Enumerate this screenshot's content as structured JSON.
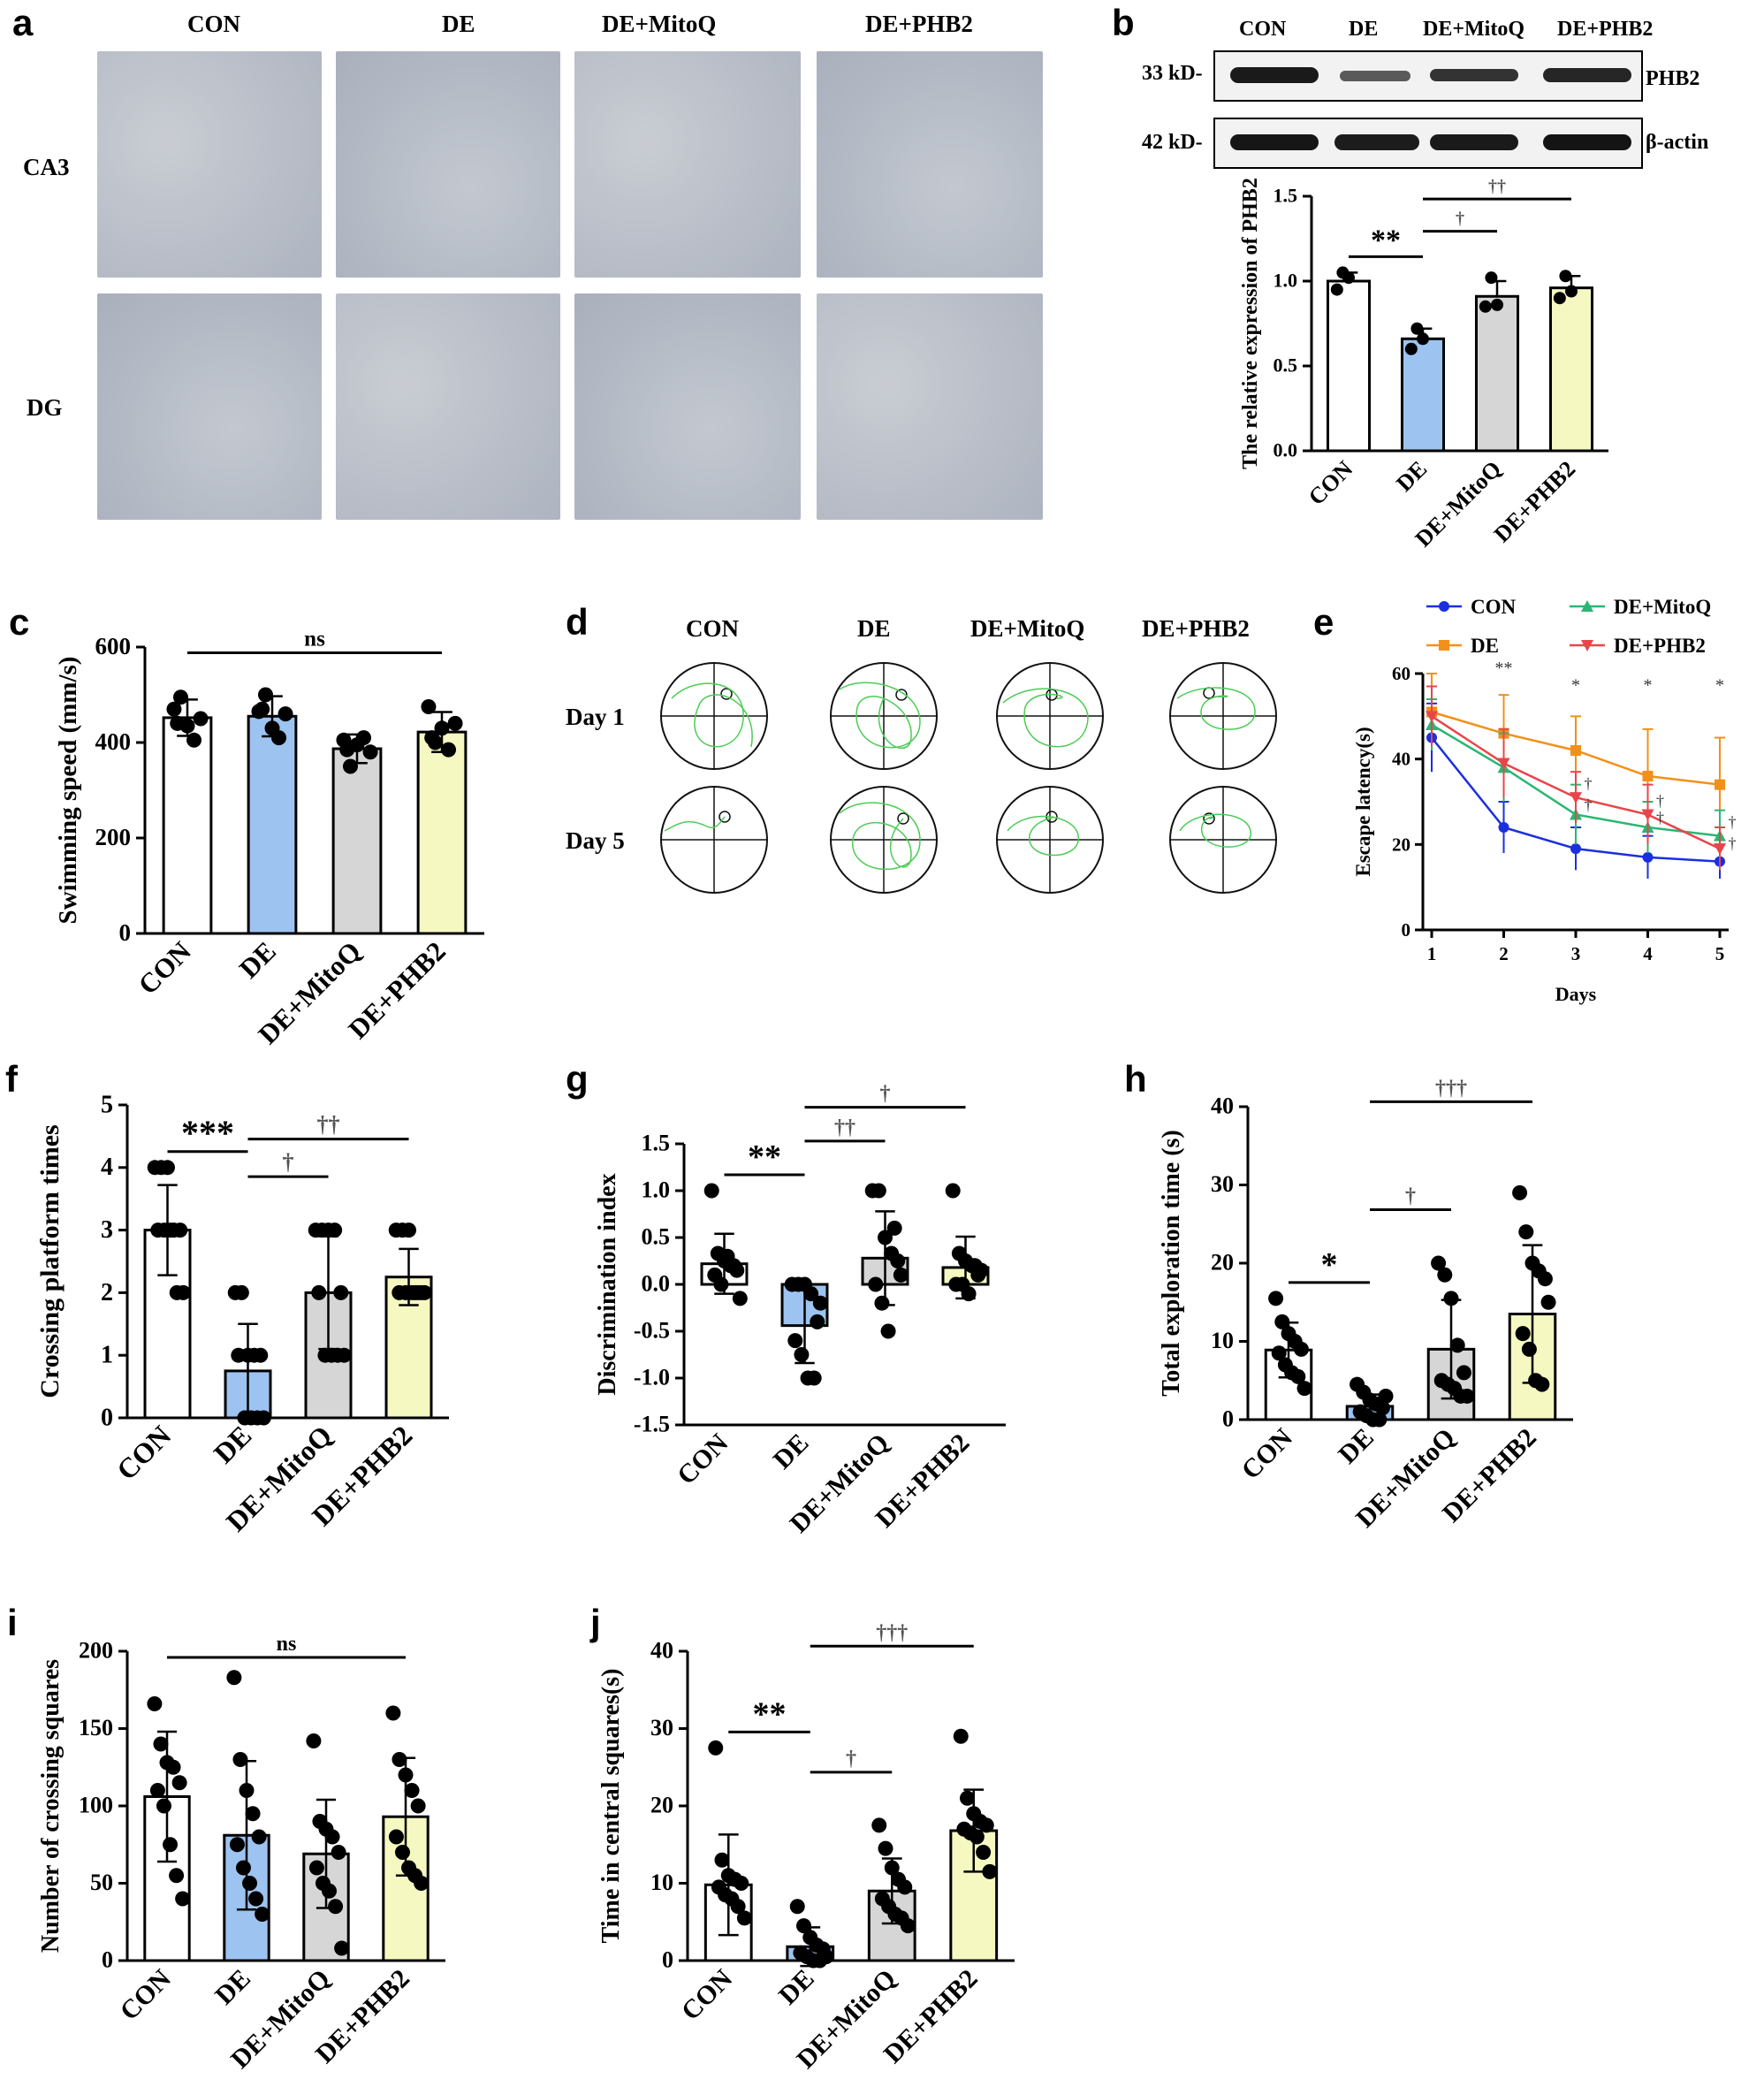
{
  "panels": {
    "a": {
      "letter": "a",
      "columns": [
        "CON",
        "DE",
        "DE+MitoQ",
        "DE+PHB2"
      ],
      "rows": [
        "CA3",
        "DG"
      ]
    },
    "b": {
      "letter": "b",
      "blot_columns": [
        "CON",
        "DE",
        "DE+MitoQ",
        "DE+PHB2"
      ],
      "blot_rows": [
        {
          "size": "33 kD-",
          "protein": "PHB2"
        },
        {
          "size": "42 kD-",
          "protein": "β-actin"
        }
      ]
    },
    "c": {
      "letter": "c"
    },
    "d": {
      "letter": "d",
      "columns": [
        "CON",
        "DE",
        "DE+MitoQ",
        "DE+PHB2"
      ],
      "rows": [
        "Day 1",
        "Day 5"
      ]
    },
    "e": {
      "letter": "e"
    },
    "f": {
      "letter": "f"
    },
    "g": {
      "letter": "g"
    },
    "h": {
      "letter": "h"
    },
    "i": {
      "letter": "i"
    },
    "j": {
      "letter": "j"
    }
  },
  "colors": {
    "CON": "#ffffff",
    "DE": "#9dc3f0",
    "DE+MitoQ": "#d6d6d6",
    "DE+PHB2": "#f6f8c2",
    "dagger": "#555555",
    "line_CON": "#1b2fe0",
    "line_DE": "#f39019",
    "line_MitoQ": "#2bb673",
    "line_PHB2": "#e8454a"
  },
  "chart_data": [
    {
      "id": "b",
      "type": "bar",
      "categories": [
        "CON",
        "DE",
        "DE+MitoQ",
        "DE+PHB2"
      ],
      "values": [
        1.0,
        0.66,
        0.91,
        0.96
      ],
      "errors": [
        0.05,
        0.06,
        0.09,
        0.07
      ],
      "points": [
        [
          0.95,
          1.05,
          1.02
        ],
        [
          0.6,
          0.72,
          0.66
        ],
        [
          0.85,
          1.02,
          0.86
        ],
        [
          0.9,
          1.03,
          0.94
        ]
      ],
      "ylabel": "The relative expression of PHB2",
      "ylim": [
        0,
        1.5
      ],
      "yticks": [
        0.0,
        0.5,
        1.0,
        1.5
      ],
      "sig": [
        {
          "from": 0,
          "to": 1,
          "label": "**",
          "kind": "star"
        },
        {
          "from": 1,
          "to": 2,
          "label": "†",
          "kind": "dagger"
        },
        {
          "from": 1,
          "to": 3,
          "label": "††",
          "kind": "dagger"
        }
      ]
    },
    {
      "id": "c",
      "type": "bar",
      "categories": [
        "CON",
        "DE",
        "DE+MitoQ",
        "DE+PHB2"
      ],
      "values": [
        452,
        455,
        387,
        422
      ],
      "errors": [
        38,
        42,
        30,
        42
      ],
      "points": [
        [
          470,
          495,
          435,
          405,
          450,
          440
        ],
        [
          465,
          500,
          430,
          410,
          460,
          470
        ],
        [
          405,
          350,
          395,
          410,
          380,
          385
        ],
        [
          475,
          400,
          430,
          385,
          440,
          410
        ]
      ],
      "ylabel": "Swimming speed (mm/s)",
      "ylim": [
        0,
        600
      ],
      "yticks": [
        0,
        200,
        400,
        600
      ],
      "sig": [
        {
          "from": 0,
          "to": 3,
          "label": "ns",
          "kind": "star"
        }
      ]
    },
    {
      "id": "e",
      "type": "line",
      "x": [
        1,
        2,
        3,
        4,
        5
      ],
      "series": [
        {
          "name": "CON",
          "values": [
            45,
            24,
            19,
            17,
            16
          ],
          "errors": [
            8,
            6,
            5,
            5,
            4
          ]
        },
        {
          "name": "DE",
          "values": [
            51,
            46,
            42,
            36,
            34
          ],
          "errors": [
            9,
            9,
            8,
            11,
            11
          ]
        },
        {
          "name": "DE+MitoQ",
          "values": [
            48,
            38,
            27,
            24,
            22
          ],
          "errors": [
            6,
            8,
            7,
            6,
            6
          ]
        },
        {
          "name": "DE+PHB2",
          "values": [
            50,
            39,
            31,
            27,
            19
          ],
          "errors": [
            7,
            8,
            6,
            7,
            5
          ]
        }
      ],
      "annotations": [
        {
          "x": 2,
          "label": "**"
        },
        {
          "x": 3,
          "label": "*"
        },
        {
          "x": 4,
          "label": "*"
        },
        {
          "x": 5,
          "label": "*"
        }
      ],
      "daggers": [
        {
          "x": 3,
          "y": 33,
          "label": "†"
        },
        {
          "x": 3,
          "y": 28,
          "label": "†"
        },
        {
          "x": 4,
          "y": 29,
          "label": "†"
        },
        {
          "x": 4,
          "y": 25,
          "label": "†"
        },
        {
          "x": 5,
          "y": 24,
          "label": "†"
        },
        {
          "x": 5,
          "y": 19,
          "label": "†"
        }
      ],
      "xlabel": "Days",
      "ylabel": "Escape latency(s)",
      "xlim": [
        1,
        5
      ],
      "ylim": [
        0,
        60
      ],
      "yticks": [
        0,
        20,
        40,
        60
      ]
    },
    {
      "id": "f",
      "type": "bar",
      "categories": [
        "CON",
        "DE",
        "DE+MitoQ",
        "DE+PHB2"
      ],
      "values": [
        3.0,
        0.75,
        2.0,
        2.25
      ],
      "errors": [
        0.72,
        0.75,
        0.9,
        0.45
      ],
      "points": [
        [
          4,
          4,
          4,
          3,
          3,
          3,
          3,
          3,
          2,
          2
        ],
        [
          2,
          2,
          1,
          1,
          1,
          1,
          0,
          0,
          0,
          0
        ],
        [
          3,
          3,
          3,
          3,
          2,
          2,
          1,
          1,
          1,
          1
        ],
        [
          3,
          3,
          3,
          2,
          2,
          2,
          2,
          2,
          2,
          2
        ]
      ],
      "ylabel": "Crossing platform times",
      "ylim": [
        0,
        5
      ],
      "yticks": [
        0,
        1,
        2,
        3,
        4,
        5
      ],
      "sig": [
        {
          "from": 0,
          "to": 1,
          "label": "***",
          "kind": "star"
        },
        {
          "from": 1,
          "to": 2,
          "label": "†",
          "kind": "dagger"
        },
        {
          "from": 1,
          "to": 3,
          "label": "††",
          "kind": "dagger"
        }
      ]
    },
    {
      "id": "g",
      "type": "bar",
      "categories": [
        "CON",
        "DE",
        "DE+MitoQ",
        "DE+PHB2"
      ],
      "values": [
        0.22,
        -0.44,
        0.28,
        0.18
      ],
      "errors": [
        0.32,
        0.4,
        0.5,
        0.33
      ],
      "points": [
        [
          1.0,
          0.33,
          0.25,
          0.2,
          0.15,
          0.1,
          0.0,
          0.3,
          0.2,
          -0.15
        ],
        [
          0.0,
          0.0,
          0.0,
          -0.1,
          -0.4,
          -0.6,
          -0.75,
          -1.0,
          -1.0,
          -0.2
        ],
        [
          1.0,
          1.0,
          0.5,
          0.33,
          0.25,
          0.0,
          -0.2,
          -0.5,
          0.6,
          0.1
        ],
        [
          1.0,
          0.33,
          0.25,
          0.2,
          0.1,
          0.0,
          0.0,
          -0.1,
          0.2,
          0.15
        ]
      ],
      "ylabel": "Discrimination index",
      "ylim": [
        -1.5,
        1.5
      ],
      "yticks": [
        -1.5,
        -1.0,
        -0.5,
        0.0,
        0.5,
        1.0,
        1.5
      ],
      "sig": [
        {
          "from": 0,
          "to": 1,
          "label": "**",
          "kind": "star"
        },
        {
          "from": 1,
          "to": 2,
          "label": "††",
          "kind": "dagger"
        },
        {
          "from": 1,
          "to": 3,
          "label": "†",
          "kind": "dagger"
        }
      ]
    },
    {
      "id": "h",
      "type": "bar",
      "categories": [
        "CON",
        "DE",
        "DE+MitoQ",
        "DE+PHB2"
      ],
      "values": [
        8.9,
        1.7,
        9.0,
        13.5
      ],
      "errors": [
        3.5,
        1.5,
        6.3,
        8.8
      ],
      "points": [
        [
          15.5,
          12.5,
          11.0,
          10.0,
          9.0,
          8.5,
          7.0,
          6.0,
          5.5,
          4.0
        ],
        [
          4.5,
          3.5,
          2.5,
          2.0,
          1.5,
          1.0,
          0.5,
          0.0,
          0.0,
          3.0
        ],
        [
          20.0,
          18.5,
          15.5,
          9.5,
          6.0,
          5.0,
          4.5,
          4.0,
          3.0,
          3.0
        ],
        [
          29.0,
          24.0,
          20.0,
          19.0,
          18.0,
          11.0,
          9.0,
          5.0,
          4.5,
          15.0
        ]
      ],
      "ylabel": "Total exploration time (s)",
      "ylim": [
        0,
        40
      ],
      "yticks": [
        0,
        10,
        20,
        30,
        40
      ],
      "sig": [
        {
          "from": 0,
          "to": 1,
          "label": "*",
          "kind": "star"
        },
        {
          "from": 1,
          "to": 2,
          "label": "†",
          "kind": "dagger"
        },
        {
          "from": 1,
          "to": 3,
          "label": "†††",
          "kind": "dagger"
        }
      ]
    },
    {
      "id": "i",
      "type": "bar",
      "categories": [
        "CON",
        "DE",
        "DE+MitoQ",
        "DE+PHB2"
      ],
      "values": [
        106,
        81,
        69,
        93
      ],
      "errors": [
        42,
        48,
        35,
        38
      ],
      "points": [
        [
          166,
          140,
          128,
          125,
          115,
          110,
          100,
          75,
          55,
          40
        ],
        [
          183,
          130,
          110,
          95,
          80,
          75,
          60,
          50,
          40,
          30
        ],
        [
          142,
          90,
          85,
          80,
          70,
          60,
          50,
          45,
          35,
          8
        ],
        [
          160,
          130,
          120,
          110,
          100,
          80,
          70,
          60,
          55,
          50
        ]
      ],
      "ylabel": "Number of crossing squares",
      "ylim": [
        0,
        200
      ],
      "yticks": [
        0,
        50,
        100,
        150,
        200
      ],
      "sig": [
        {
          "from": 0,
          "to": 3,
          "label": "ns",
          "kind": "star"
        }
      ]
    },
    {
      "id": "j",
      "type": "bar",
      "categories": [
        "CON",
        "DE",
        "DE+MitoQ",
        "DE+PHB2"
      ],
      "values": [
        9.8,
        1.8,
        9.0,
        16.8
      ],
      "errors": [
        6.5,
        2.5,
        4.2,
        5.3
      ],
      "points": [
        [
          27.5,
          13.0,
          11.0,
          10.5,
          10.0,
          9.5,
          8.5,
          8.0,
          7.0,
          5.5
        ],
        [
          7.0,
          4.5,
          3.0,
          2.0,
          1.5,
          1.0,
          0.5,
          0.0,
          0.0,
          0.5
        ],
        [
          17.5,
          14.5,
          12.0,
          10.5,
          9.5,
          8.0,
          7.0,
          6.0,
          5.5,
          4.5
        ],
        [
          29.0,
          21.0,
          19.0,
          18.0,
          17.5,
          17.0,
          16.5,
          16.0,
          14.0,
          11.5
        ]
      ],
      "ylabel": "Time in central squares(s)",
      "ylim": [
        0,
        40
      ],
      "yticks": [
        0,
        10,
        20,
        30,
        40
      ],
      "sig": [
        {
          "from": 0,
          "to": 1,
          "label": "**",
          "kind": "star"
        },
        {
          "from": 1,
          "to": 2,
          "label": "†",
          "kind": "dagger"
        },
        {
          "from": 1,
          "to": 3,
          "label": "†††",
          "kind": "dagger"
        }
      ]
    }
  ]
}
